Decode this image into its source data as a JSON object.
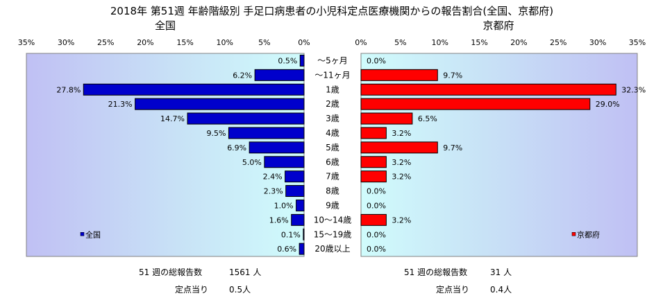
{
  "title": "2018年 第51週 年齢階級別 手足口病患者の小児科定点医療機関からの報告割合(全国、京都府)",
  "categories": [
    "～5ヶ月",
    "～11ヶ月",
    "1歳",
    "2歳",
    "3歳",
    "4歳",
    "5歳",
    "6歳",
    "7歳",
    "8歳",
    "9歳",
    "10～14歳",
    "15～19歳",
    "20歳以上"
  ],
  "left_panel": {
    "heading": "全国",
    "legend": "全国",
    "color": "#0000cc",
    "axis": {
      "min": 0,
      "max": 35,
      "step": 5,
      "reversed": true
    },
    "tick_labels": [
      "0%",
      "5%",
      "10%",
      "15%",
      "20%",
      "25%",
      "30%",
      "35%"
    ]
  },
  "right_panel": {
    "heading": "京都府",
    "legend": "京都府",
    "color": "#ff0000",
    "axis": {
      "min": 0,
      "max": 35,
      "step": 5,
      "reversed": false
    },
    "tick_labels": [
      "0%",
      "5%",
      "10%",
      "15%",
      "20%",
      "25%",
      "30%",
      "35%"
    ]
  },
  "chart_data": [
    {
      "type": "bar",
      "orientation": "horizontal",
      "title": "全国",
      "categories": [
        "～5ヶ月",
        "～11ヶ月",
        "1歳",
        "2歳",
        "3歳",
        "4歳",
        "5歳",
        "6歳",
        "7歳",
        "8歳",
        "9歳",
        "10～14歳",
        "15～19歳",
        "20歳以上"
      ],
      "series": [
        {
          "name": "全国",
          "values": [
            0.5,
            6.2,
            27.8,
            21.3,
            14.7,
            9.5,
            6.9,
            5.0,
            2.4,
            2.3,
            1.0,
            1.6,
            0.1,
            0.6
          ]
        }
      ],
      "value_labels": [
        "0.5%",
        "6.2%",
        "27.8%",
        "21.3%",
        "14.7%",
        "9.5%",
        "6.9%",
        "5.0%",
        "2.4%",
        "2.3%",
        "1.0%",
        "1.6%",
        "0.1%",
        "0.6%"
      ],
      "xlim": [
        0,
        35
      ],
      "x_reversed": true
    },
    {
      "type": "bar",
      "orientation": "horizontal",
      "title": "京都府",
      "categories": [
        "～5ヶ月",
        "～11ヶ月",
        "1歳",
        "2歳",
        "3歳",
        "4歳",
        "5歳",
        "6歳",
        "7歳",
        "8歳",
        "9歳",
        "10～14歳",
        "15～19歳",
        "20歳以上"
      ],
      "series": [
        {
          "name": "京都府",
          "values": [
            0.0,
            9.7,
            32.3,
            29.0,
            6.5,
            3.2,
            9.7,
            3.2,
            3.2,
            0.0,
            0.0,
            3.2,
            0.0,
            0.0
          ]
        }
      ],
      "value_labels": [
        "0.0%",
        "9.7%",
        "32.3%",
        "29.0%",
        "6.5%",
        "3.2%",
        "9.7%",
        "3.2%",
        "3.2%",
        "0.0%",
        "0.0%",
        "3.2%",
        "0.0%",
        "0.0%"
      ],
      "xlim": [
        0,
        35
      ],
      "x_reversed": false
    }
  ],
  "footer": {
    "national": {
      "total_label": "51 週の総報告数",
      "total_value": "1561 人",
      "per_label": "定点当り",
      "per_value": "0.5人"
    },
    "kyoto": {
      "total_label": "51 週の総報告数",
      "total_value": "31 人",
      "per_label": "定点当り",
      "per_value": "0.4人"
    }
  }
}
